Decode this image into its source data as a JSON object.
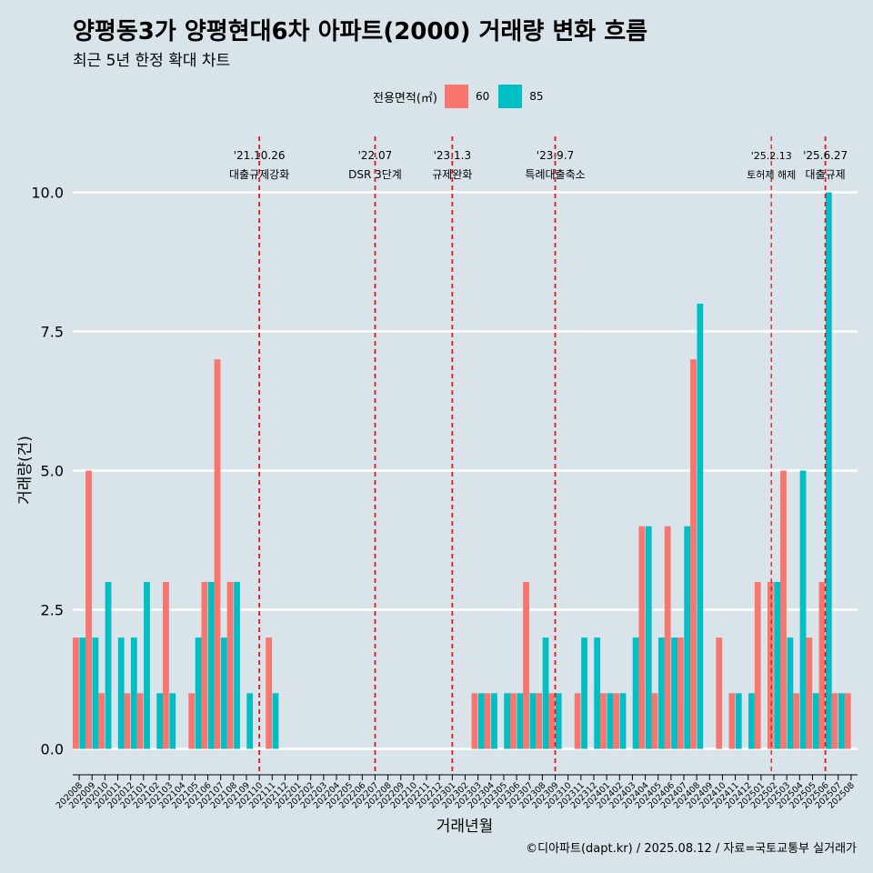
{
  "header": {
    "title": "양평동3가 양평현대6차 아파트(2000) 거래량 변화 흐름",
    "subtitle": "최근 5년 한정 확대 차트"
  },
  "legend": {
    "title": "전용면적(㎡)",
    "items": [
      {
        "label": "60",
        "color": "#f8766d"
      },
      {
        "label": "85",
        "color": "#00bfc4"
      }
    ]
  },
  "caption": "©디아파트(dapt.kr) / 2025.08.12 / 자료=국토교통부 실거래가",
  "colors": {
    "s60": "#f8766d",
    "s85": "#00bfc4",
    "event_line": "#e8141c",
    "background": "#d8e4ea"
  },
  "chart_data": {
    "type": "bar",
    "title": "양평동3가 양평현대6차 아파트(2000) 거래량 변화 흐름",
    "subtitle": "최근 5년 한정 확대 차트",
    "xlabel": "거래년월",
    "ylabel": "거래량(건)",
    "ylim": [
      -0.45,
      10.9
    ],
    "yticks": [
      0.0,
      2.5,
      5.0,
      7.5,
      10.0
    ],
    "ytick_labels": [
      "0.0",
      "2.5",
      "5.0",
      "7.5",
      "10.0"
    ],
    "categories": [
      "202008",
      "202009",
      "202010",
      "202011",
      "202012",
      "202101",
      "202102",
      "202103",
      "202104",
      "202105",
      "202106",
      "202107",
      "202108",
      "202109",
      "202110",
      "202111",
      "202112",
      "202201",
      "202202",
      "202203",
      "202204",
      "202205",
      "202206",
      "202207",
      "202208",
      "202209",
      "202210",
      "202211",
      "202212",
      "202301",
      "202302",
      "202303",
      "202304",
      "202305",
      "202306",
      "202307",
      "202308",
      "202309",
      "202310",
      "202311",
      "202312",
      "202401",
      "202402",
      "202403",
      "202404",
      "202405",
      "202406",
      "202407",
      "202408",
      "202409",
      "202410",
      "202411",
      "202412",
      "202501",
      "202502",
      "202503",
      "202504",
      "202505",
      "202506",
      "202507",
      "202508"
    ],
    "series": [
      {
        "name": "60",
        "values": [
          2,
          5,
          1,
          0,
          1,
          1,
          0,
          3,
          0,
          1,
          3,
          7,
          3,
          0,
          0,
          2,
          0,
          0,
          0,
          0,
          0,
          0,
          0,
          0,
          0,
          0,
          0,
          0,
          0,
          0,
          0,
          1,
          1,
          0,
          1,
          3,
          1,
          1,
          0,
          1,
          0,
          1,
          1,
          0,
          4,
          1,
          4,
          2,
          7,
          0,
          2,
          1,
          0,
          3,
          3,
          5,
          1,
          2,
          3,
          1,
          1
        ]
      },
      {
        "name": "85",
        "values": [
          2,
          2,
          3,
          2,
          2,
          3,
          1,
          1,
          0,
          2,
          3,
          2,
          3,
          1,
          0,
          1,
          0,
          0,
          0,
          0,
          0,
          0,
          0,
          0,
          0,
          0,
          0,
          0,
          0,
          0,
          0,
          1,
          1,
          1,
          1,
          1,
          2,
          1,
          0,
          2,
          2,
          1,
          1,
          2,
          4,
          2,
          2,
          4,
          8,
          0,
          0,
          1,
          1,
          0,
          3,
          2,
          5,
          1,
          10,
          1,
          0
        ]
      }
    ],
    "events": [
      {
        "date": "'21.10.26",
        "label": "대출규제강화",
        "month": "202110"
      },
      {
        "date": "'22.07",
        "label": "DSR 3단계",
        "month": "202207"
      },
      {
        "date": "'23.1.3",
        "label": "규제완화",
        "month": "202301"
      },
      {
        "date": "'23.9.7",
        "label": "특례대출축소",
        "month": "202309"
      },
      {
        "date": "'25.2.13",
        "label": "토허제 해제",
        "month": "202502"
      },
      {
        "date": "'25.6.27",
        "label": "대출규제",
        "month": "202506"
      }
    ]
  }
}
